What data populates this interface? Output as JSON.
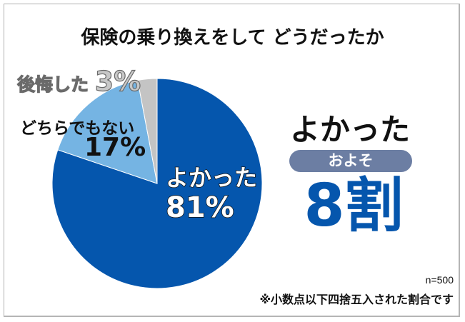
{
  "title": "保険の乗り換えをして どうだったか",
  "chart_data": {
    "type": "pie",
    "title": "保険の乗り換えをして どうだったか",
    "categories": [
      "よかった",
      "どちらでもない",
      "後悔した"
    ],
    "values": [
      81,
      17,
      3
    ],
    "unit": "%",
    "colors": [
      "#0556ad",
      "#75b4e3",
      "#c4c4c4"
    ],
    "start_angle_deg": 0,
    "direction": "clockwise",
    "sample_size": "n=500",
    "note": "※小数点以下四捨五入された割合です"
  },
  "labels": {
    "regret_name": "後悔した",
    "regret_pct": "3%",
    "neutral_name": "どちらでもない",
    "neutral_pct": "17%",
    "good_name": "よかった",
    "good_pct": "81%"
  },
  "callout": {
    "headline": "よかった",
    "pill": "およそ",
    "big": "8割"
  },
  "footer": {
    "n": "n=500",
    "note": "※小数点以下四捨五入された割合です"
  }
}
